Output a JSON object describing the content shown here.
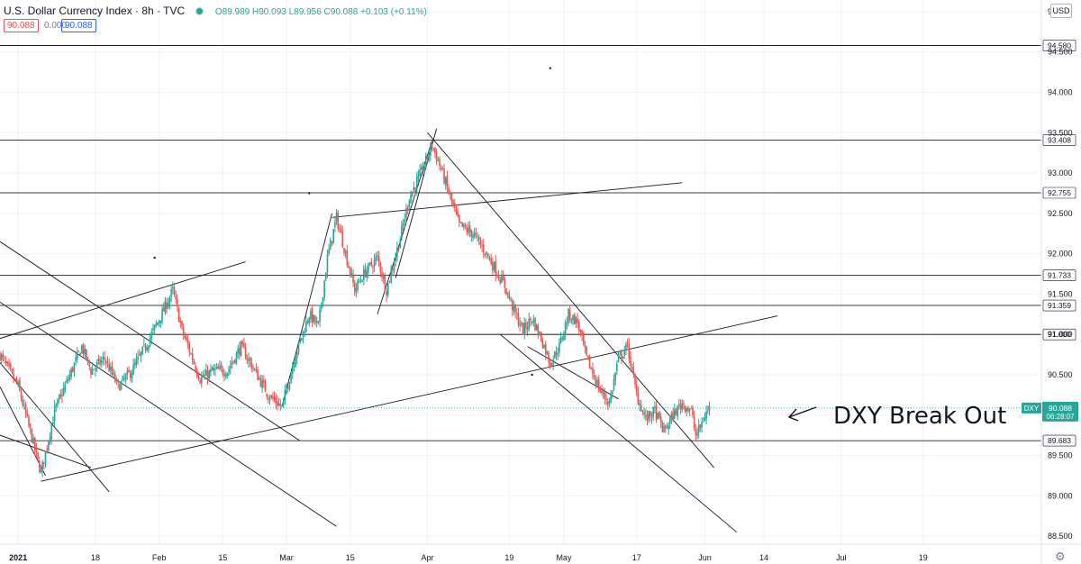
{
  "header": {
    "title": "U.S. Dollar Currency Index · 8h · TVC",
    "ohlc": "O89.989 H90.093 L89.956 C90.088 +0.103 (+0.11%)",
    "bid_box": "90.088",
    "volume": "0.000",
    "ask_box": "90.088"
  },
  "currency_button": "USD",
  "settings_icon": "gear-icon",
  "colors": {
    "up": "#26a69a",
    "down": "#ef5350",
    "line": "#131722",
    "axis_text": "#131722",
    "current_price": "#26a69a",
    "grid": "#f0f3fa"
  },
  "chart_data": {
    "type": "candlestick",
    "symbol": "DXY",
    "timeframe": "8h",
    "ylim": [
      88.4,
      95.1
    ],
    "y_ticks": [
      "88.500",
      "89.000",
      "89.500",
      "90.000",
      "90.500",
      "91.000",
      "91.500",
      "92.000",
      "92.500",
      "93.000",
      "93.500",
      "94.000",
      "94.500",
      "95.000"
    ],
    "x_ticks": [
      {
        "label": "2021",
        "day": 0
      },
      {
        "label": "18",
        "day": 17
      },
      {
        "label": "Feb",
        "day": 31
      },
      {
        "label": "15",
        "day": 45
      },
      {
        "label": "Mar",
        "day": 59
      },
      {
        "label": "15",
        "day": 73
      },
      {
        "label": "Apr",
        "day": 90
      },
      {
        "label": "19",
        "day": 108
      },
      {
        "label": "May",
        "day": 120
      },
      {
        "label": "17",
        "day": 136
      },
      {
        "label": "Jun",
        "day": 151
      },
      {
        "label": "14",
        "day": 164
      },
      {
        "label": "Jul",
        "day": 181
      },
      {
        "label": "19",
        "day": 199
      }
    ],
    "x_range_days": [
      -4,
      225
    ],
    "close_path": [
      [
        -4,
        90.75
      ],
      [
        0,
        90.35
      ],
      [
        3,
        89.72
      ],
      [
        5,
        89.28
      ],
      [
        8,
        90.05
      ],
      [
        11,
        90.45
      ],
      [
        14,
        90.85
      ],
      [
        16,
        90.55
      ],
      [
        19,
        90.7
      ],
      [
        22,
        90.35
      ],
      [
        25,
        90.55
      ],
      [
        28,
        90.85
      ],
      [
        32,
        91.3
      ],
      [
        34,
        91.55
      ],
      [
        36,
        91.05
      ],
      [
        40,
        90.45
      ],
      [
        43,
        90.55
      ],
      [
        46,
        90.55
      ],
      [
        49,
        90.85
      ],
      [
        52,
        90.55
      ],
      [
        55,
        90.25
      ],
      [
        58,
        90.1
      ],
      [
        61,
        90.75
      ],
      [
        64,
        91.25
      ],
      [
        66,
        91.1
      ],
      [
        68,
        91.95
      ],
      [
        70,
        92.45
      ],
      [
        72,
        92.0
      ],
      [
        74,
        91.55
      ],
      [
        76,
        91.75
      ],
      [
        79,
        91.95
      ],
      [
        81,
        91.55
      ],
      [
        84,
        92.2
      ],
      [
        86,
        92.7
      ],
      [
        89,
        93.05
      ],
      [
        91,
        93.35
      ],
      [
        93,
        93.05
      ],
      [
        95,
        92.7
      ],
      [
        97,
        92.35
      ],
      [
        100,
        92.25
      ],
      [
        103,
        92.0
      ],
      [
        105,
        91.8
      ],
      [
        107,
        91.6
      ],
      [
        109,
        91.3
      ],
      [
        111,
        91.05
      ],
      [
        113,
        91.2
      ],
      [
        115,
        90.95
      ],
      [
        117,
        90.65
      ],
      [
        119,
        90.85
      ],
      [
        121,
        91.25
      ],
      [
        123,
        91.15
      ],
      [
        125,
        90.7
      ],
      [
        128,
        90.3
      ],
      [
        130,
        90.15
      ],
      [
        132,
        90.7
      ],
      [
        134,
        90.85
      ],
      [
        136,
        90.25
      ],
      [
        138,
        89.95
      ],
      [
        140,
        90.05
      ],
      [
        142,
        89.8
      ],
      [
        144,
        90.0
      ],
      [
        146,
        90.15
      ],
      [
        148,
        90.05
      ],
      [
        149,
        89.75
      ],
      [
        150,
        89.85
      ],
      [
        151,
        90.0
      ],
      [
        152,
        90.088
      ]
    ],
    "last_price": "90.088",
    "last_label": "DXY",
    "countdown": "06:28:07",
    "horizontal_levels": [
      "94.580",
      "93.408",
      "92.755",
      "91.733",
      "91.359",
      "91.000",
      "89.683"
    ],
    "trend_lines": [
      {
        "from": [
          -4,
          92.15
        ],
        "to": [
          62,
          89.68
        ]
      },
      {
        "from": [
          -4,
          90.35
        ],
        "to": [
          6,
          89.25
        ]
      },
      {
        "from": [
          -4,
          89.75
        ],
        "to": [
          16,
          89.35
        ]
      },
      {
        "from": [
          -4,
          90.95
        ],
        "to": [
          50,
          91.9
        ]
      },
      {
        "from": [
          -4,
          91.4
        ],
        "to": [
          70,
          88.62
        ]
      },
      {
        "from": [
          -4,
          90.65
        ],
        "to": [
          20,
          89.05
        ]
      },
      {
        "from": [
          5,
          89.18
        ],
        "to": [
          167,
          91.23
        ]
      },
      {
        "from": [
          58,
          90.1
        ],
        "to": [
          69,
          92.5
        ]
      },
      {
        "from": [
          69,
          92.45
        ],
        "to": [
          146,
          92.88
        ]
      },
      {
        "from": [
          79,
          91.25
        ],
        "to": [
          91,
          93.4
        ]
      },
      {
        "from": [
          83,
          91.7
        ],
        "to": [
          92,
          93.55
        ]
      },
      {
        "from": [
          90,
          93.5
        ],
        "to": [
          153,
          89.35
        ]
      },
      {
        "from": [
          106,
          91.0
        ],
        "to": [
          158,
          88.55
        ]
      },
      {
        "from": [
          112,
          90.85
        ],
        "to": [
          132,
          90.2
        ]
      }
    ],
    "dots": [
      [
        117,
        94.3
      ],
      [
        64,
        92.75
      ],
      [
        30,
        91.95
      ],
      [
        113,
        90.5
      ]
    ],
    "annotation": "DXY Break Out"
  }
}
